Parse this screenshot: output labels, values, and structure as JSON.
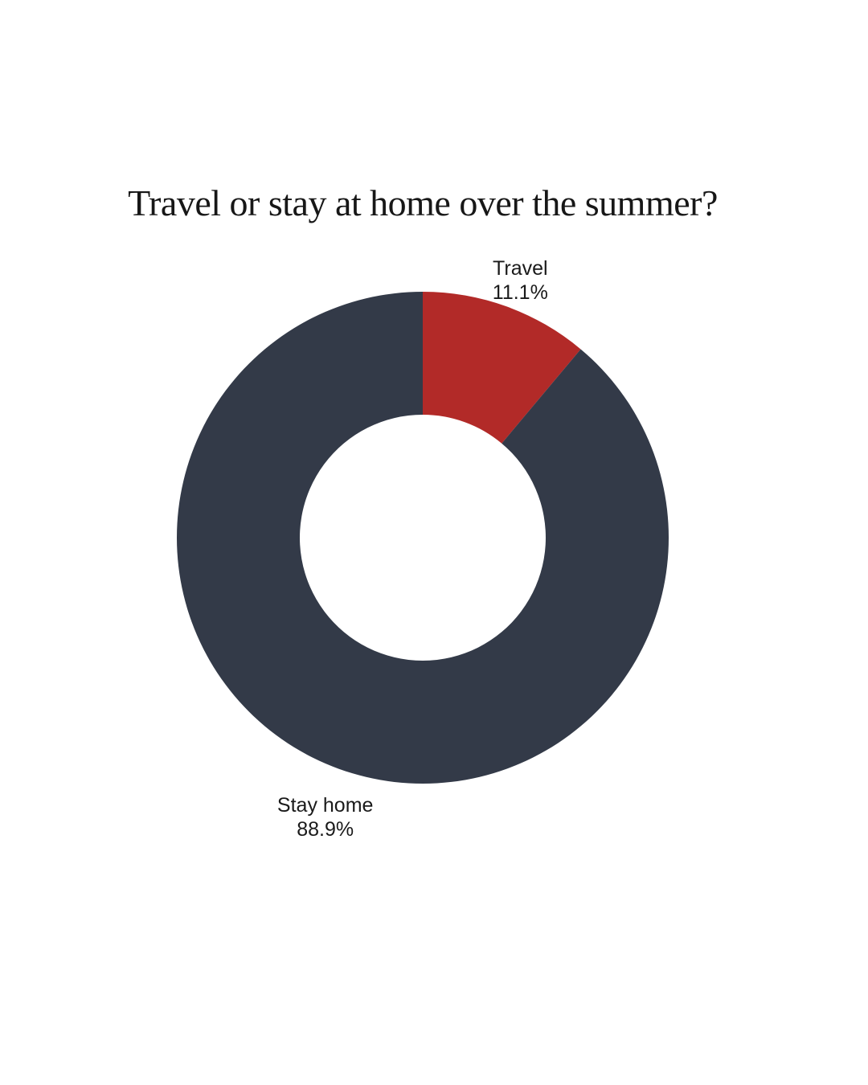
{
  "title": "Travel or stay at home over the summer?",
  "colors": {
    "background": "#ffffff",
    "title_text": "#171717",
    "label_text": "#1a1a1a",
    "travel_red": "#b22a28",
    "stay_home_navy": "#333a48"
  },
  "chart_data": {
    "type": "pie",
    "subtype": "donut",
    "title": "Travel or stay at home over the summer?",
    "categories": [
      "Travel",
      "Stay home"
    ],
    "values": [
      11.1,
      88.9
    ],
    "slice_labels": [
      {
        "name": "Travel",
        "percent": "11.1%"
      },
      {
        "name": "Stay home",
        "percent": "88.9%"
      }
    ],
    "slice_colors": [
      "#b22a28",
      "#333a48"
    ],
    "start_angle_deg": -90,
    "direction": "clockwise",
    "donut_hole_ratio": 0.5,
    "legend": "none",
    "gridlines": "off",
    "background": "#ffffff"
  }
}
